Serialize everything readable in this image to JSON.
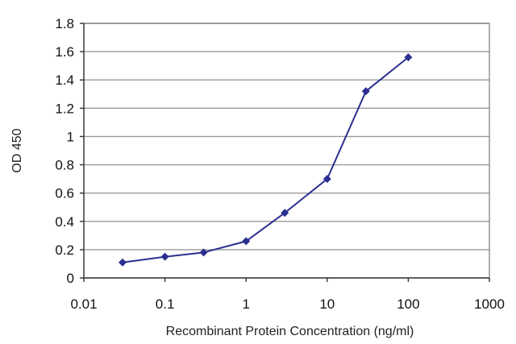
{
  "chart_data": {
    "type": "line",
    "title": "",
    "xlabel": "Recombinant Protein Concentration (ng/ml)",
    "ylabel": "OD 450",
    "xscale": "log",
    "xlim": [
      0.01,
      1000
    ],
    "ylim": [
      0,
      1.8
    ],
    "grid": "horizontal",
    "legend": "none",
    "x_ticks": [
      "0.01",
      "0.1",
      "1",
      "10",
      "100",
      "1000"
    ],
    "y_ticks": [
      "0",
      "0.2",
      "0.4",
      "0.6",
      "0.8",
      "1",
      "1.2",
      "1.4",
      "1.6",
      "1.8"
    ],
    "series": [
      {
        "color": "#2b2f8f",
        "x": [
          0.03,
          0.1,
          0.3,
          1,
          3,
          10,
          30,
          100
        ],
        "y": [
          0.11,
          0.15,
          0.18,
          0.26,
          0.46,
          0.7,
          1.32,
          1.56
        ]
      }
    ]
  }
}
